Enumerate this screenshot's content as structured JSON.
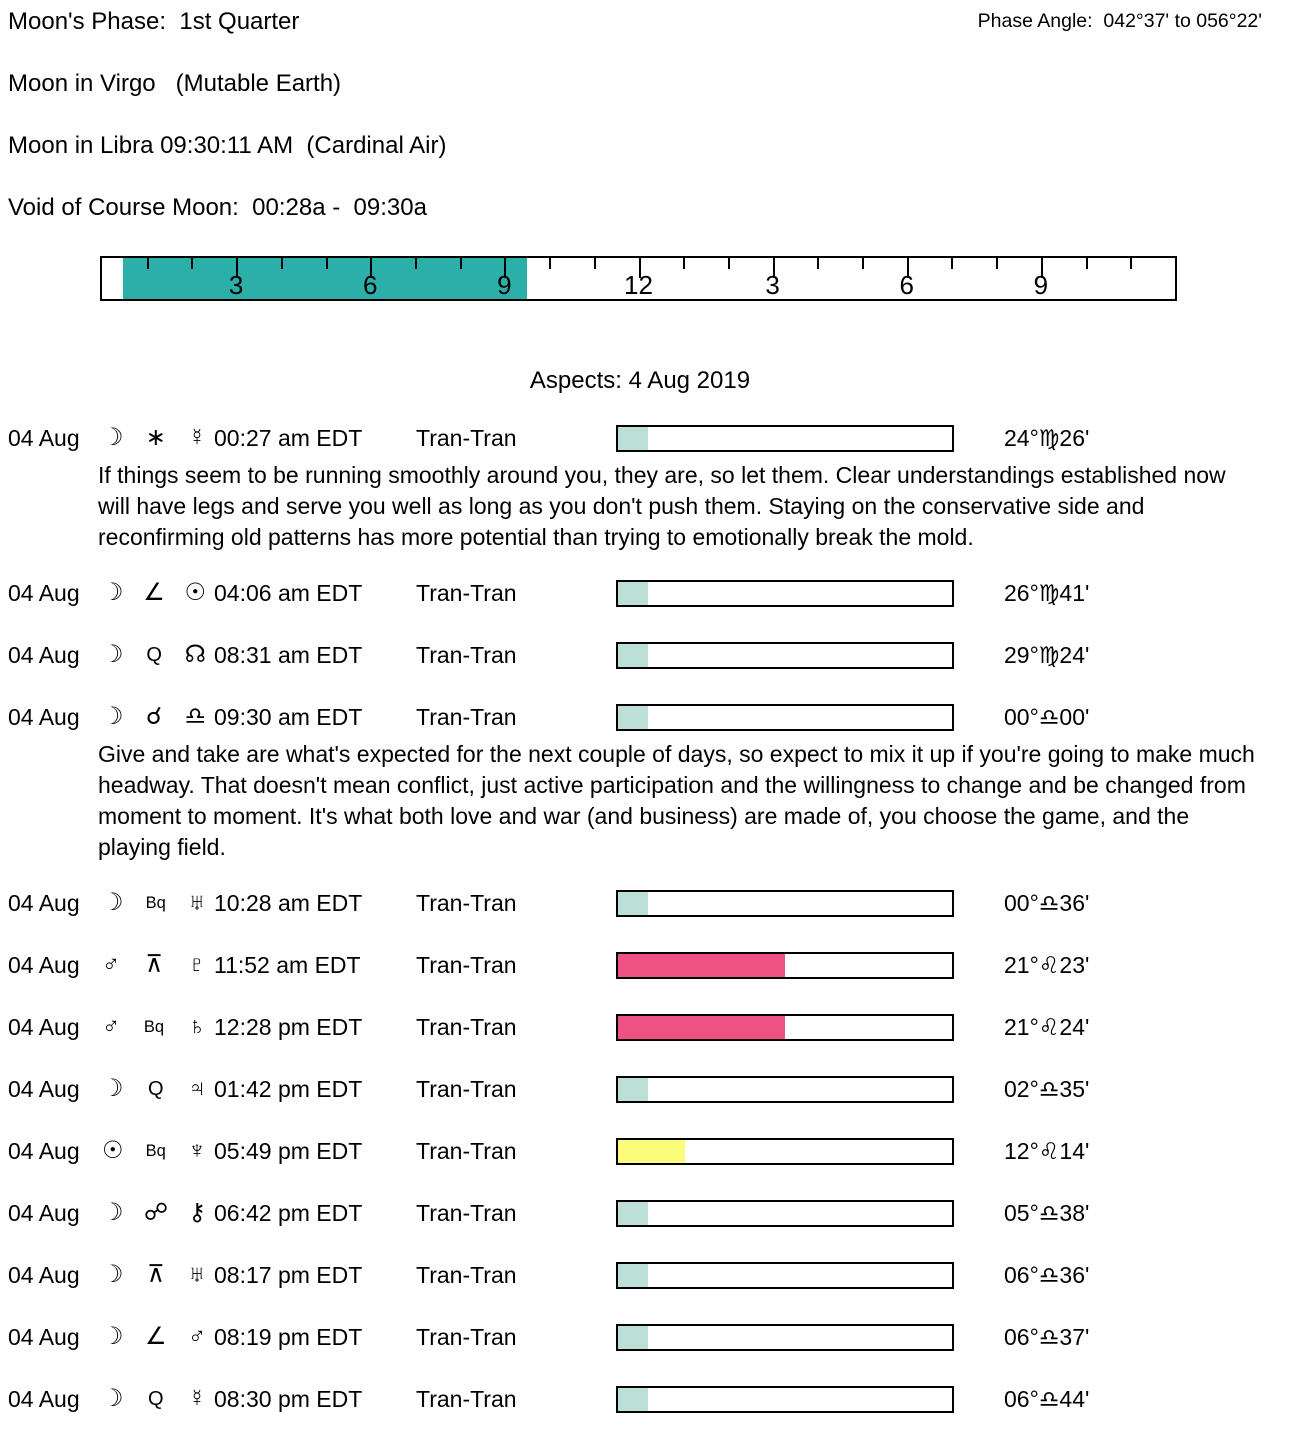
{
  "colors": {
    "teal": "#BCDFD8",
    "pink": "#EE5183",
    "yellow": "#FCFC7B",
    "ruler_teal": "#2CAEA9"
  },
  "header": {
    "moons_phase": "Moon's Phase:  1st Quarter",
    "phase_angle": "Phase Angle:  042°37' to 056°22'",
    "moon_in_sign": "Moon in Virgo   (Mutable Earth)",
    "moon_next_sign": "Moon in Libra 09:30:11 AM  (Cardinal Air)",
    "void_of_course": "Void of Course Moon:  00:28a -  09:30a"
  },
  "ruler": {
    "hours": 24,
    "void_start_hour": 0.47,
    "void_end_hour": 9.5,
    "labels": {
      "3": "3",
      "6": "6",
      "9": "9",
      "12": "12",
      "15": "3",
      "18": "6",
      "21": "9"
    }
  },
  "aspects": {
    "title": "Aspects: 4 Aug 2019",
    "rows": [
      {
        "date": "04 Aug",
        "symbols": [
          {
            "name": "moon",
            "glyph": "☽"
          },
          {
            "name": "sextile",
            "glyph": "∗"
          },
          {
            "name": "mercury",
            "glyph": "☿"
          }
        ],
        "time": "00:27 am EDT",
        "type": "Tran-Tran",
        "bar": {
          "color": "teal",
          "pct": 9
        },
        "degree": "24°♍26'",
        "note": "If things seem to be running smoothly around you, they are, so let them. Clear understandings established now will have legs and serve you well as long as you don't push them. Staying on the conservative side and reconfirming old patterns has more potential than trying to emotionally break the mold."
      },
      {
        "date": "04 Aug",
        "symbols": [
          {
            "name": "moon",
            "glyph": "☽"
          },
          {
            "name": "semisquare",
            "glyph": "∠"
          },
          {
            "name": "sun",
            "glyph": "☉"
          }
        ],
        "time": "04:06 am EDT",
        "type": "Tran-Tran",
        "bar": {
          "color": "teal",
          "pct": 9
        },
        "degree": "26°♍41'"
      },
      {
        "date": "04 Aug",
        "symbols": [
          {
            "name": "moon",
            "glyph": "☽"
          },
          {
            "name": "quintile",
            "glyph": "Q",
            "size": "md"
          },
          {
            "name": "north-node",
            "glyph": "☊"
          }
        ],
        "time": "08:31 am EDT",
        "type": "Tran-Tran",
        "bar": {
          "color": "teal",
          "pct": 9
        },
        "degree": "29°♍24'"
      },
      {
        "date": "04 Aug",
        "symbols": [
          {
            "name": "moon",
            "glyph": "☽"
          },
          {
            "name": "conjunction",
            "glyph": "☌"
          },
          {
            "name": "libra",
            "glyph": "♎"
          }
        ],
        "time": "09:30 am EDT",
        "type": "Tran-Tran",
        "bar": {
          "color": "teal",
          "pct": 9
        },
        "degree": "00°♎00'",
        "note": "Give and take are what's expected for the next couple of days, so expect to mix it up if you're going to make much headway. That doesn't mean conflict, just active participation and the willingness to change and be changed from moment to moment. It's what both love and war (and business) are made of, you choose the game, and the playing field."
      },
      {
        "date": "04 Aug",
        "symbols": [
          {
            "name": "moon",
            "glyph": "☽"
          },
          {
            "name": "biquintile",
            "glyph": "Bq",
            "size": "sm"
          },
          {
            "name": "uranus",
            "glyph": "♅"
          }
        ],
        "time": "10:28 am EDT",
        "type": "Tran-Tran",
        "bar": {
          "color": "teal",
          "pct": 9
        },
        "degree": "00°♎36'"
      },
      {
        "date": "04 Aug",
        "symbols": [
          {
            "name": "mars",
            "glyph": "♂"
          },
          {
            "name": "quincunx",
            "glyph": "⊼"
          },
          {
            "name": "pluto",
            "glyph": "♇"
          }
        ],
        "time": "11:52 am EDT",
        "type": "Tran-Tran",
        "bar": {
          "color": "pink",
          "pct": 50
        },
        "degree": "21°♌23'"
      },
      {
        "date": "04 Aug",
        "symbols": [
          {
            "name": "mars",
            "glyph": "♂"
          },
          {
            "name": "biquintile",
            "glyph": "Bq",
            "size": "sm"
          },
          {
            "name": "saturn",
            "glyph": "♄"
          }
        ],
        "time": "12:28 pm EDT",
        "type": "Tran-Tran",
        "bar": {
          "color": "pink",
          "pct": 50
        },
        "degree": "21°♌24'"
      },
      {
        "date": "04 Aug",
        "symbols": [
          {
            "name": "moon",
            "glyph": "☽"
          },
          {
            "name": "quintile",
            "glyph": "Q",
            "size": "md"
          },
          {
            "name": "jupiter",
            "glyph": "♃"
          }
        ],
        "time": "01:42 pm EDT",
        "type": "Tran-Tran",
        "bar": {
          "color": "teal",
          "pct": 9
        },
        "degree": "02°♎35'"
      },
      {
        "date": "04 Aug",
        "symbols": [
          {
            "name": "sun",
            "glyph": "☉"
          },
          {
            "name": "biquintile",
            "glyph": "Bq",
            "size": "sm"
          },
          {
            "name": "neptune",
            "glyph": "♆"
          }
        ],
        "time": "05:49 pm EDT",
        "type": "Tran-Tran",
        "bar": {
          "color": "yellow",
          "pct": 20
        },
        "degree": "12°♌14'"
      },
      {
        "date": "04 Aug",
        "symbols": [
          {
            "name": "moon",
            "glyph": "☽"
          },
          {
            "name": "opposition",
            "glyph": "☍"
          },
          {
            "name": "chiron",
            "glyph": "⚷"
          }
        ],
        "time": "06:42 pm EDT",
        "type": "Tran-Tran",
        "bar": {
          "color": "teal",
          "pct": 9
        },
        "degree": "05°♎38'"
      },
      {
        "date": "04 Aug",
        "symbols": [
          {
            "name": "moon",
            "glyph": "☽"
          },
          {
            "name": "quincunx",
            "glyph": "⊼"
          },
          {
            "name": "uranus",
            "glyph": "♅"
          }
        ],
        "time": "08:17 pm EDT",
        "type": "Tran-Tran",
        "bar": {
          "color": "teal",
          "pct": 9
        },
        "degree": "06°♎36'"
      },
      {
        "date": "04 Aug",
        "symbols": [
          {
            "name": "moon",
            "glyph": "☽"
          },
          {
            "name": "semisquare",
            "glyph": "∠"
          },
          {
            "name": "mars",
            "glyph": "♂"
          }
        ],
        "time": "08:19 pm EDT",
        "type": "Tran-Tran",
        "bar": {
          "color": "teal",
          "pct": 9
        },
        "degree": "06°♎37'"
      },
      {
        "date": "04 Aug",
        "symbols": [
          {
            "name": "moon",
            "glyph": "☽"
          },
          {
            "name": "quintile",
            "glyph": "Q",
            "size": "md"
          },
          {
            "name": "mercury",
            "glyph": "☿"
          }
        ],
        "time": "08:30 pm EDT",
        "type": "Tran-Tran",
        "bar": {
          "color": "teal",
          "pct": 9
        },
        "degree": "06°♎44'"
      }
    ]
  }
}
